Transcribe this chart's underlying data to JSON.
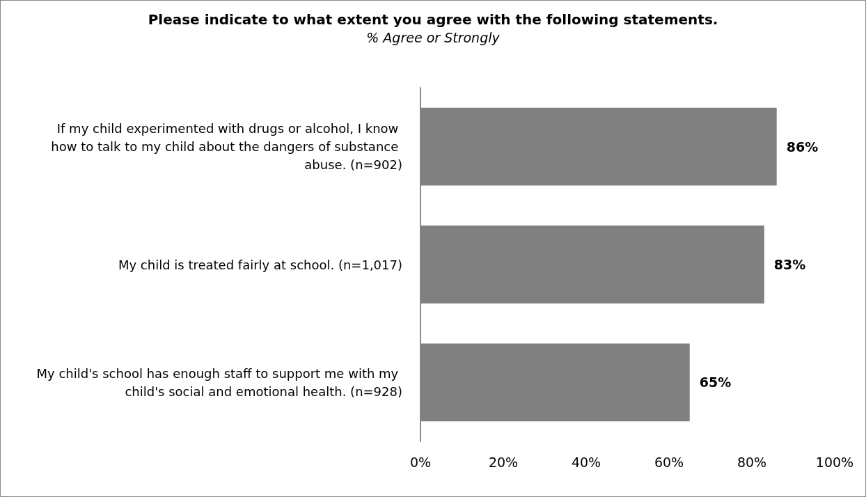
{
  "chart_data": {
    "type": "bar",
    "orientation": "horizontal",
    "title": "Please indicate to what extent you agree with the following statements.",
    "subtitle": "% Agree or Strongly",
    "categories": [
      "If my child experimented with drugs or alcohol, I know how to talk to my child about the dangers of substance abuse. (n=902)",
      "My child is treated fairly at school. (n=1,017)",
      "My child's school has enough staff to support me with my child's social and emotional health. (n=928)"
    ],
    "values": [
      86,
      83,
      65
    ],
    "value_labels": [
      "86%",
      "83%",
      "65%"
    ],
    "color": "#808080",
    "xlim": [
      0,
      100
    ],
    "xticks": [
      {
        "value": 0,
        "label": "0%"
      },
      {
        "value": 20,
        "label": "20%"
      },
      {
        "value": 40,
        "label": "40%"
      },
      {
        "value": 60,
        "label": "60%"
      },
      {
        "value": 80,
        "label": "80%"
      },
      {
        "value": 100,
        "label": "100%"
      }
    ],
    "grid": false
  }
}
